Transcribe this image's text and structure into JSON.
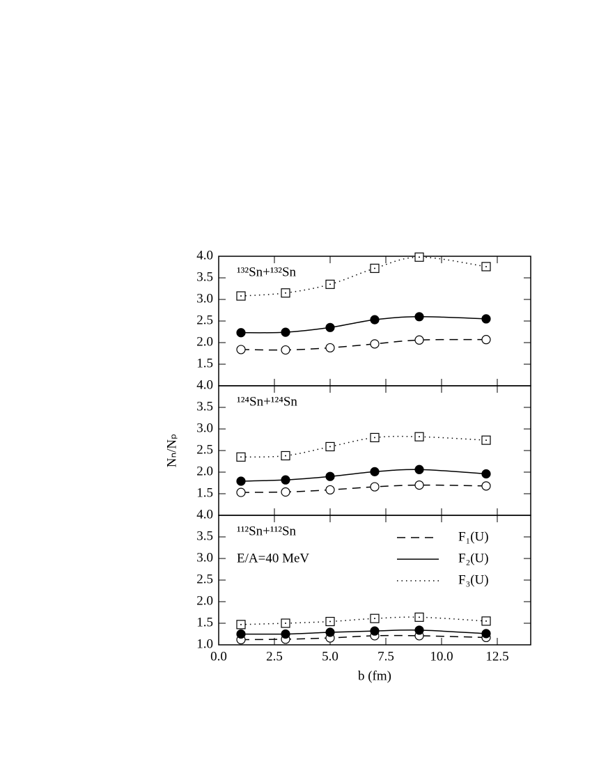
{
  "chart_data": [
    {
      "type": "line",
      "title": "¹³²Sn+¹³²Sn",
      "x": [
        1,
        3,
        5,
        7,
        9,
        12
      ],
      "xlim": [
        0,
        14
      ],
      "ylim": [
        1,
        4
      ],
      "yticks": [
        {
          "value": 1.5,
          "label": "1.5"
        },
        {
          "value": 2,
          "label": "2.0"
        },
        {
          "value": 2.5,
          "label": "2.5"
        },
        {
          "value": 3,
          "label": "3.0"
        },
        {
          "value": 3.5,
          "label": "3.5"
        },
        {
          "value": 4,
          "label": "4.0"
        }
      ],
      "series": [
        {
          "linestyle": "dashed",
          "marker": "open-circle",
          "color": "#000000",
          "values": [
            1.84,
            1.83,
            1.88,
            1.97,
            2.06,
            2.07
          ]
        },
        {
          "linestyle": "solid",
          "marker": "filled-circle",
          "color": "#000000",
          "values": [
            2.23,
            2.24,
            2.35,
            2.53,
            2.6,
            2.55
          ]
        },
        {
          "linestyle": "dotted",
          "marker": "open-square",
          "color": "#000000",
          "values": [
            3.08,
            3.15,
            3.35,
            3.72,
            3.98,
            3.76
          ]
        }
      ]
    },
    {
      "type": "line",
      "title": "¹²⁴Sn+¹²⁴Sn",
      "ylabel": "Nₙ/Nₚ",
      "x": [
        1,
        3,
        5,
        7,
        9,
        12
      ],
      "xlim": [
        0,
        14
      ],
      "ylim": [
        1,
        4
      ],
      "yticks": [
        {
          "value": 1.5,
          "label": "1.5"
        },
        {
          "value": 2,
          "label": "2.0"
        },
        {
          "value": 2.5,
          "label": "2.5"
        },
        {
          "value": 3,
          "label": "3.0"
        },
        {
          "value": 3.5,
          "label": "3.5"
        },
        {
          "value": 4,
          "label": "4.0"
        }
      ],
      "series": [
        {
          "linestyle": "dashed",
          "marker": "open-circle",
          "color": "#000000",
          "values": [
            1.53,
            1.54,
            1.59,
            1.66,
            1.7,
            1.68
          ]
        },
        {
          "linestyle": "solid",
          "marker": "filled-circle",
          "color": "#000000",
          "values": [
            1.79,
            1.82,
            1.9,
            2.01,
            2.06,
            1.96
          ]
        },
        {
          "linestyle": "dotted",
          "marker": "open-square",
          "color": "#000000",
          "values": [
            2.35,
            2.38,
            2.59,
            2.8,
            2.82,
            2.74
          ]
        }
      ]
    },
    {
      "type": "line",
      "title": "¹¹²Sn+¹¹²Sn",
      "annotation": "E/A=40 MeV",
      "xlabel": "b (fm)",
      "x": [
        1,
        3,
        5,
        7,
        9,
        12
      ],
      "xlim": [
        0,
        14
      ],
      "ylim": [
        1,
        4
      ],
      "xticks": [
        {
          "value": 0,
          "label": "0.0"
        },
        2.5,
        {
          "value": 5,
          "label": "5.0"
        },
        7.5,
        {
          "value": 10,
          "label": "10.0"
        },
        12.5
      ],
      "yticks": [
        {
          "value": 1,
          "label": "1.0"
        },
        {
          "value": 1.5,
          "label": "1.5"
        },
        {
          "value": 2,
          "label": "2.0"
        },
        {
          "value": 2.5,
          "label": "2.5"
        },
        {
          "value": 3,
          "label": "3.0"
        },
        {
          "value": 3.5,
          "label": "3.5"
        },
        {
          "value": 4,
          "label": "4.0"
        }
      ],
      "series": [
        {
          "name": "F₁(U)",
          "linestyle": "dashed",
          "marker": "open-circle",
          "color": "#000000",
          "values": [
            1.12,
            1.13,
            1.16,
            1.21,
            1.21,
            1.17
          ]
        },
        {
          "name": "F₂(U)",
          "linestyle": "solid",
          "marker": "filled-circle",
          "color": "#000000",
          "values": [
            1.25,
            1.25,
            1.29,
            1.32,
            1.34,
            1.26
          ]
        },
        {
          "name": "F₃(U)",
          "linestyle": "dotted",
          "marker": "open-square",
          "color": "#000000",
          "values": [
            1.47,
            1.5,
            1.54,
            1.61,
            1.64,
            1.55
          ]
        }
      ]
    }
  ]
}
